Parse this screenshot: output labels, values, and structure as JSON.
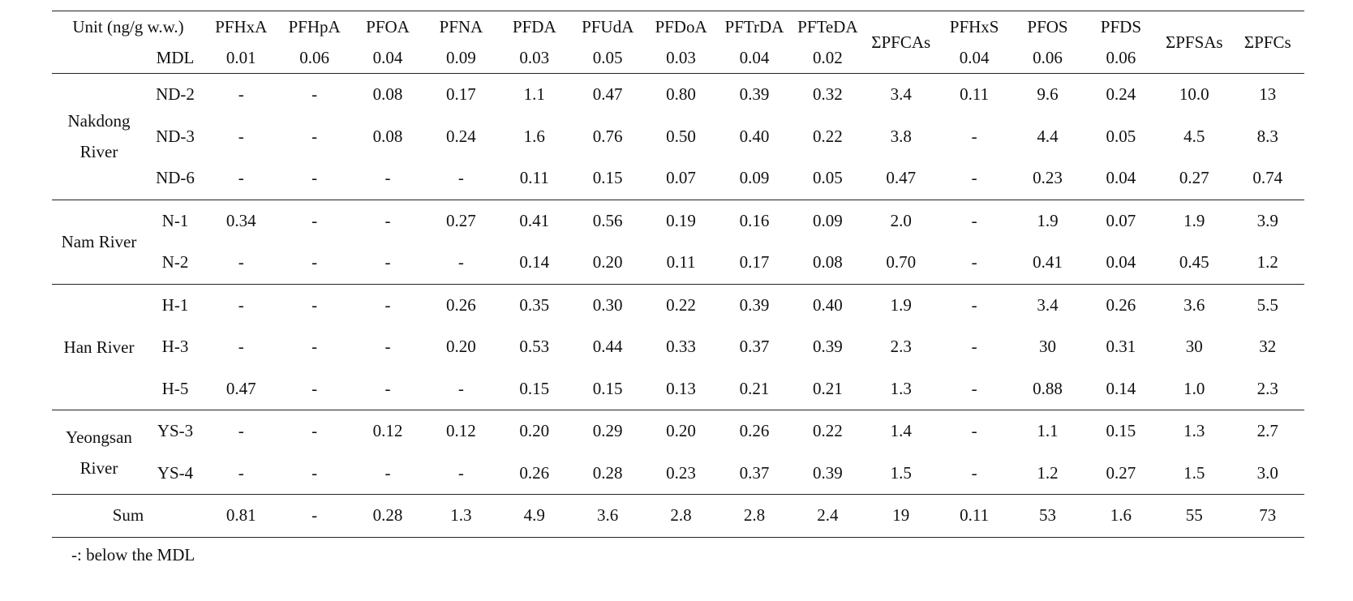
{
  "header": {
    "unit": "Unit (ng/g w.w.)",
    "columns": [
      "PFHxA",
      "PFHpA",
      "PFOA",
      "PFNA",
      "PFDA",
      "PFUdA",
      "PFDoA",
      "PFTrDA",
      "PFTeDA",
      "ΣPFCAs",
      "PFHxS",
      "PFOS",
      "PFDS",
      "ΣPFSAs",
      "ΣPFCs"
    ],
    "mdl_label": "MDL",
    "mdl": [
      "0.01",
      "0.06",
      "0.04",
      "0.09",
      "0.03",
      "0.05",
      "0.03",
      "0.04",
      "0.02",
      null,
      "0.04",
      "0.06",
      "0.06",
      null,
      null
    ]
  },
  "groups": [
    {
      "name": "Nakdong River",
      "rows": [
        {
          "site": "ND-2",
          "values": [
            "-",
            "-",
            "0.08",
            "0.17",
            "1.1",
            "0.47",
            "0.80",
            "0.39",
            "0.32",
            "3.4",
            "0.11",
            "9.6",
            "0.24",
            "10.0",
            "13"
          ]
        },
        {
          "site": "ND-3",
          "values": [
            "-",
            "-",
            "0.08",
            "0.24",
            "1.6",
            "0.76",
            "0.50",
            "0.40",
            "0.22",
            "3.8",
            "-",
            "4.4",
            "0.05",
            "4.5",
            "8.3"
          ]
        },
        {
          "site": "ND-6",
          "values": [
            "-",
            "-",
            "-",
            "-",
            "0.11",
            "0.15",
            "0.07",
            "0.09",
            "0.05",
            "0.47",
            "-",
            "0.23",
            "0.04",
            "0.27",
            "0.74"
          ]
        }
      ]
    },
    {
      "name": "Nam River",
      "rows": [
        {
          "site": "N-1",
          "values": [
            "0.34",
            "-",
            "-",
            "0.27",
            "0.41",
            "0.56",
            "0.19",
            "0.16",
            "0.09",
            "2.0",
            "-",
            "1.9",
            "0.07",
            "1.9",
            "3.9"
          ]
        },
        {
          "site": "N-2",
          "values": [
            "-",
            "-",
            "-",
            "-",
            "0.14",
            "0.20",
            "0.11",
            "0.17",
            "0.08",
            "0.70",
            "-",
            "0.41",
            "0.04",
            "0.45",
            "1.2"
          ]
        }
      ]
    },
    {
      "name": "Han River",
      "rows": [
        {
          "site": "H-1",
          "values": [
            "-",
            "-",
            "-",
            "0.26",
            "0.35",
            "0.30",
            "0.22",
            "0.39",
            "0.40",
            "1.9",
            "-",
            "3.4",
            "0.26",
            "3.6",
            "5.5"
          ]
        },
        {
          "site": "H-3",
          "values": [
            "-",
            "-",
            "-",
            "0.20",
            "0.53",
            "0.44",
            "0.33",
            "0.37",
            "0.39",
            "2.3",
            "-",
            "30",
            "0.31",
            "30",
            "32"
          ]
        },
        {
          "site": "H-5",
          "values": [
            "0.47",
            "-",
            "-",
            "-",
            "0.15",
            "0.15",
            "0.13",
            "0.21",
            "0.21",
            "1.3",
            "-",
            "0.88",
            "0.14",
            "1.0",
            "2.3"
          ]
        }
      ]
    },
    {
      "name": "Yeongsan River",
      "rows": [
        {
          "site": "YS-3",
          "values": [
            "-",
            "-",
            "0.12",
            "0.12",
            "0.20",
            "0.29",
            "0.20",
            "0.26",
            "0.22",
            "1.4",
            "-",
            "1.1",
            "0.15",
            "1.3",
            "2.7"
          ]
        },
        {
          "site": "YS-4",
          "values": [
            "-",
            "-",
            "-",
            "-",
            "0.26",
            "0.28",
            "0.23",
            "0.37",
            "0.39",
            "1.5",
            "-",
            "1.2",
            "0.27",
            "1.5",
            "3.0"
          ]
        }
      ]
    }
  ],
  "sum": {
    "label": "Sum",
    "values": [
      "0.81",
      "-",
      "0.28",
      "1.3",
      "4.9",
      "3.6",
      "2.8",
      "2.8",
      "2.4",
      "19",
      "0.11",
      "53",
      "1.6",
      "55",
      "73"
    ]
  },
  "footnote": "-: below the MDL"
}
